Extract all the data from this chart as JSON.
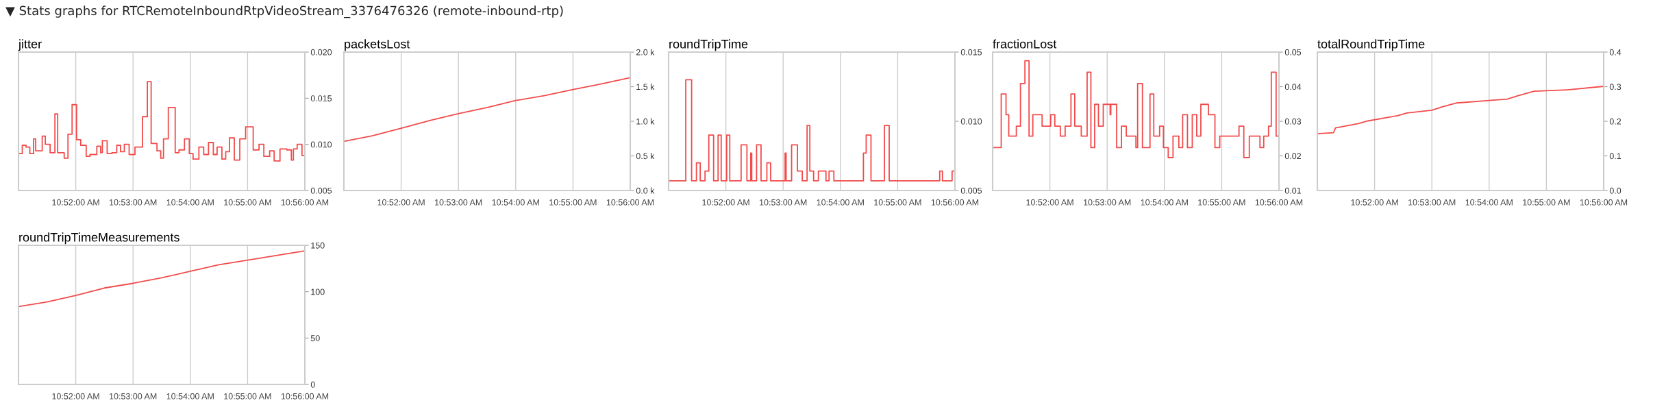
{
  "chart_data": [
    {
      "type": "step",
      "title": "jitter",
      "annotations": [
        "▼ Stats graphs for RTCRemoteInboundRtpVideoStream_3376476326 (remote-inbound-rtp)"
      ],
      "color": "#f24b4b",
      "grid": "x",
      "x": [
        10.85,
        10.8511,
        10.8522,
        10.8533,
        10.8544,
        10.855,
        10.8569,
        10.8578,
        10.8592,
        10.8606,
        10.8614,
        10.8633,
        10.8644,
        10.8656,
        10.8669,
        10.8681,
        10.8697,
        10.8708,
        10.8728,
        10.8739,
        10.8744,
        10.8758,
        10.8772,
        10.8786,
        10.8797,
        10.8808,
        10.8822,
        10.8839,
        10.8861,
        10.8875,
        10.8886,
        10.8903,
        10.8914,
        10.8922,
        10.8936,
        10.8956,
        10.8967,
        10.8983,
        10.8997,
        10.9008,
        10.9025,
        10.9039,
        10.9053,
        10.9067,
        10.9078,
        10.9092,
        10.9103,
        10.9114,
        10.9128,
        10.9144,
        10.9161,
        10.9183,
        10.92,
        10.9214,
        10.9231,
        10.9244,
        10.9261,
        10.9281,
        10.9294,
        10.93,
        10.9311,
        10.9325,
        10.9333
      ],
      "values": [
        0.009,
        0.0099,
        0.0097,
        0.009,
        0.0106,
        0.0093,
        0.0109,
        0.01,
        0.0091,
        0.0133,
        0.0091,
        0.0085,
        0.0111,
        0.0143,
        0.0105,
        0.0099,
        0.0087,
        0.0089,
        0.0098,
        0.0091,
        0.0104,
        0.009,
        0.0091,
        0.0099,
        0.0092,
        0.01,
        0.0089,
        0.0097,
        0.013,
        0.0168,
        0.0101,
        0.0093,
        0.0085,
        0.0106,
        0.014,
        0.0091,
        0.0094,
        0.0106,
        0.009,
        0.0084,
        0.0097,
        0.0089,
        0.0102,
        0.0089,
        0.0097,
        0.0084,
        0.0092,
        0.0107,
        0.0083,
        0.0106,
        0.0119,
        0.0094,
        0.01,
        0.0087,
        0.0093,
        0.0082,
        0.0095,
        0.0094,
        0.0083,
        0.0095,
        0.01,
        0.0088,
        0.0088
      ],
      "xlim": [
        10.85,
        10.933333
      ],
      "xticks": [
        {
          "value": 10.866667,
          "label": "10:52:00 AM"
        },
        {
          "value": 10.883333,
          "label": "10:53:00 AM"
        },
        {
          "value": 10.9,
          "label": "10:54:00 AM"
        },
        {
          "value": 10.916667,
          "label": "10:55:00 AM"
        },
        {
          "value": 10.933333,
          "label": "10:56:00 AM"
        }
      ],
      "ylim": [
        0.005,
        0.02
      ],
      "yticks": [
        0.005,
        {
          "value": 0.01,
          "label": "0.010"
        },
        0.015,
        {
          "value": 0.02,
          "label": "0.020"
        }
      ]
    },
    {
      "type": "line",
      "title": "packetsLost",
      "color": "#f24b4b",
      "grid": "x",
      "x": [
        10.85,
        10.8583,
        10.8667,
        10.875,
        10.8833,
        10.8917,
        10.9,
        10.9083,
        10.9167,
        10.925,
        10.9333
      ],
      "values": [
        710,
        790,
        900,
        1010,
        1110,
        1200,
        1300,
        1370,
        1460,
        1540,
        1630
      ],
      "xlim": [
        10.85,
        10.933333
      ],
      "xticks": [
        {
          "value": 10.866667,
          "label": "10:52:00 AM"
        },
        {
          "value": 10.883333,
          "label": "10:53:00 AM"
        },
        {
          "value": 10.9,
          "label": "10:54:00 AM"
        },
        {
          "value": 10.916667,
          "label": "10:55:00 AM"
        },
        {
          "value": 10.933333,
          "label": "10:56:00 AM"
        }
      ],
      "ylim": [
        0,
        2000
      ],
      "yticks": [
        {
          "value": 0,
          "label": "0.0 k"
        },
        {
          "value": 500,
          "label": "0.5 k"
        },
        {
          "value": 1000,
          "label": "1.0 k"
        },
        {
          "value": 1500,
          "label": "1.5 k"
        },
        {
          "value": 2000,
          "label": "2.0 k"
        }
      ]
    },
    {
      "type": "step",
      "title": "roundTripTime",
      "color": "#f24b4b",
      "grid": "x",
      "x": [
        10.85,
        10.855,
        10.8567,
        10.8581,
        10.8592,
        10.8606,
        10.8617,
        10.8631,
        10.8644,
        10.8653,
        10.8669,
        10.8678,
        10.8711,
        10.8728,
        10.8739,
        10.8742,
        10.8756,
        10.8769,
        10.8786,
        10.8797,
        10.8839,
        10.8842,
        10.8858,
        10.8875,
        10.8889,
        10.8903,
        10.8911,
        10.8922,
        10.8936,
        10.8958,
        10.8967,
        10.8981,
        10.9067,
        10.9075,
        10.9089,
        10.9128,
        10.9142,
        10.9289,
        10.9297,
        10.9325,
        10.9333
      ],
      "values": [
        0.0057,
        0.013,
        0.0057,
        0.007,
        0.0057,
        0.0064,
        0.009,
        0.0057,
        0.009,
        0.0057,
        0.009,
        0.0057,
        0.0083,
        0.0057,
        0.0077,
        0.0057,
        0.0083,
        0.0057,
        0.007,
        0.0057,
        0.0077,
        0.0057,
        0.0083,
        0.0064,
        0.0057,
        0.0097,
        0.0064,
        0.0057,
        0.0064,
        0.0057,
        0.0064,
        0.0057,
        0.0077,
        0.009,
        0.0057,
        0.0097,
        0.0057,
        0.0064,
        0.0057,
        0.0064,
        0.0064
      ],
      "xlim": [
        10.85,
        10.933333
      ],
      "xticks": [
        {
          "value": 10.866667,
          "label": "10:52:00 AM"
        },
        {
          "value": 10.883333,
          "label": "10:53:00 AM"
        },
        {
          "value": 10.9,
          "label": "10:54:00 AM"
        },
        {
          "value": 10.916667,
          "label": "10:55:00 AM"
        },
        {
          "value": 10.933333,
          "label": "10:56:00 AM"
        }
      ],
      "ylim": [
        0.005,
        0.015
      ],
      "yticks": [
        0.005,
        {
          "value": 0.01,
          "label": "0.010"
        },
        0.015
      ]
    },
    {
      "type": "step",
      "title": "fractionLost",
      "color": "#f24b4b",
      "grid": "x",
      "x": [
        10.85,
        10.8525,
        10.8539,
        10.8547,
        10.8569,
        10.8581,
        10.8594,
        10.8606,
        10.8617,
        10.8644,
        10.8669,
        10.8681,
        10.8697,
        10.8711,
        10.8728,
        10.8739,
        10.8758,
        10.8775,
        10.8786,
        10.8797,
        10.8808,
        10.8822,
        10.8842,
        10.8844,
        10.8861,
        10.8875,
        10.8889,
        10.8917,
        10.8922,
        10.8936,
        10.8958,
        10.8969,
        10.8986,
        10.8997,
        10.9011,
        10.9025,
        10.9042,
        10.9053,
        10.9067,
        10.9081,
        10.9094,
        10.9106,
        10.9128,
        10.9147,
        10.9161,
        10.9217,
        10.9231,
        10.9247,
        10.9278,
        10.9289,
        10.9303,
        10.9311,
        10.9325,
        10.9333
      ],
      "values": [
        0.0224,
        0.0379,
        0.0319,
        0.0257,
        0.0286,
        0.0409,
        0.0475,
        0.0257,
        0.0319,
        0.0286,
        0.0319,
        0.0286,
        0.0257,
        0.0286,
        0.0379,
        0.0286,
        0.0257,
        0.0442,
        0.0224,
        0.0349,
        0.0286,
        0.0349,
        0.0319,
        0.0349,
        0.0224,
        0.0286,
        0.0257,
        0.0224,
        0.0409,
        0.0224,
        0.0379,
        0.0257,
        0.0286,
        0.0224,
        0.0195,
        0.0257,
        0.0224,
        0.0319,
        0.0224,
        0.0319,
        0.0257,
        0.0349,
        0.0319,
        0.0224,
        0.0257,
        0.0286,
        0.0195,
        0.0257,
        0.0224,
        0.0257,
        0.0286,
        0.0442,
        0.0257,
        0.0257
      ],
      "xlim": [
        10.85,
        10.933333
      ],
      "xticks": [
        {
          "value": 10.866667,
          "label": "10:52:00 AM"
        },
        {
          "value": 10.883333,
          "label": "10:53:00 AM"
        },
        {
          "value": 10.9,
          "label": "10:54:00 AM"
        },
        {
          "value": 10.916667,
          "label": "10:55:00 AM"
        },
        {
          "value": 10.933333,
          "label": "10:56:00 AM"
        }
      ],
      "ylim": [
        0.01,
        0.05
      ],
      "yticks": [
        0.01,
        0.02,
        0.03,
        0.04,
        0.05
      ]
    },
    {
      "type": "line",
      "title": "totalRoundTripTime",
      "color": "#f24b4b",
      "grid": "x",
      "x": [
        10.85,
        10.8547,
        10.8553,
        10.8617,
        10.8647,
        10.8733,
        10.8761,
        10.8833,
        10.8864,
        10.8906,
        10.9,
        10.9053,
        10.9081,
        10.9131,
        10.9228,
        10.9333
      ],
      "values": [
        0.164,
        0.167,
        0.181,
        0.193,
        0.201,
        0.216,
        0.224,
        0.232,
        0.242,
        0.253,
        0.26,
        0.264,
        0.273,
        0.287,
        0.291,
        0.301
      ],
      "xlim": [
        10.85,
        10.933333
      ],
      "xticks": [
        {
          "value": 10.866667,
          "label": "10:52:00 AM"
        },
        {
          "value": 10.883333,
          "label": "10:53:00 AM"
        },
        {
          "value": 10.9,
          "label": "10:54:00 AM"
        },
        {
          "value": 10.916667,
          "label": "10:55:00 AM"
        },
        {
          "value": 10.933333,
          "label": "10:56:00 AM"
        }
      ],
      "ylim": [
        0,
        0.4
      ],
      "yticks": [
        {
          "value": 0,
          "label": "0.0"
        },
        0.1,
        0.2,
        0.3,
        0.4
      ]
    },
    {
      "type": "line",
      "title": "roundTripTimeMeasurements",
      "color": "#f24b4b",
      "grid": "x",
      "x": [
        10.85,
        10.8583,
        10.8667,
        10.875,
        10.8833,
        10.8917,
        10.9,
        10.9083,
        10.9167,
        10.925,
        10.9333
      ],
      "values": [
        84,
        89,
        96,
        104,
        109,
        115,
        122,
        129,
        134,
        139,
        144
      ],
      "xlim": [
        10.85,
        10.933333
      ],
      "xticks": [
        {
          "value": 10.866667,
          "label": "10:52:00 AM"
        },
        {
          "value": 10.883333,
          "label": "10:53:00 AM"
        },
        {
          "value": 10.9,
          "label": "10:54:00 AM"
        },
        {
          "value": 10.916667,
          "label": "10:55:00 AM"
        },
        {
          "value": 10.933333,
          "label": "10:56:00 AM"
        }
      ],
      "ylim": [
        0,
        150
      ],
      "yticks": [
        0,
        50,
        100,
        150
      ]
    }
  ]
}
